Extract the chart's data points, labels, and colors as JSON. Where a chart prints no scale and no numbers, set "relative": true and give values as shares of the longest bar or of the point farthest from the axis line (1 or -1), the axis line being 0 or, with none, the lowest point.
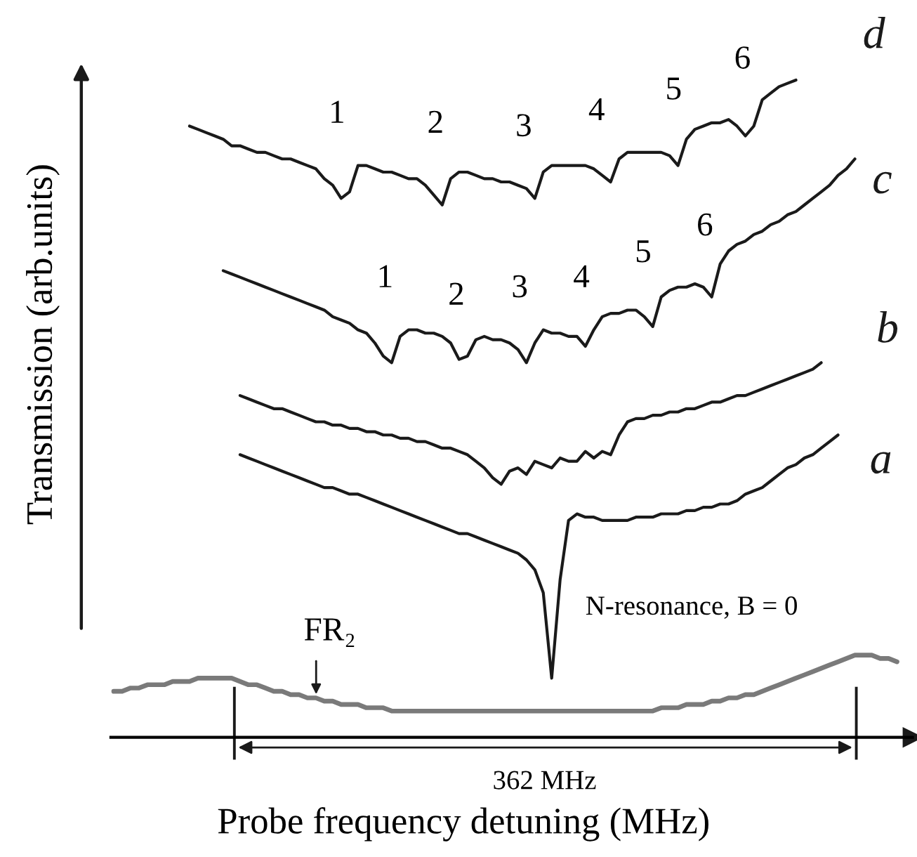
{
  "chart_data": {
    "type": "line",
    "relative": true,
    "xlabel": "Probe frequency detuning (MHz)",
    "ylabel": "Transmission (arb.units)",
    "line_style": "solid",
    "categories": [
      null,
      null,
      null,
      null,
      null,
      null,
      null,
      null,
      null,
      null,
      null,
      null,
      null,
      null,
      null,
      null,
      null,
      null,
      null,
      null,
      null,
      null,
      null,
      null,
      null,
      null,
      null,
      null,
      null,
      null,
      null,
      null,
      null,
      null,
      null,
      null,
      null,
      null,
      null,
      null,
      null,
      null,
      null,
      null,
      null,
      null,
      null,
      null,
      null,
      null,
      null,
      null,
      null,
      null,
      null,
      null,
      null,
      null,
      null,
      null,
      null,
      null,
      null,
      null,
      null,
      null,
      null,
      null,
      null,
      null,
      null,
      null,
      null,
      null,
      null,
      null,
      null,
      null,
      null,
      null,
      null,
      null,
      null,
      null,
      null,
      null,
      null,
      null,
      null,
      null,
      null,
      null,
      null,
      null
    ],
    "series": [
      {
        "name": "d",
        "color": "#1a1a1a",
        "values": [
          null,
          null,
          null,
          null,
          null,
          null,
          null,
          null,
          null,
          0.93,
          0.925,
          0.92,
          0.915,
          0.91,
          0.9,
          0.9,
          0.895,
          0.89,
          0.89,
          0.885,
          0.88,
          0.88,
          0.875,
          0.87,
          0.865,
          0.85,
          0.84,
          0.82,
          0.83,
          0.87,
          0.87,
          0.865,
          0.86,
          0.86,
          0.855,
          0.85,
          0.85,
          0.84,
          0.825,
          0.81,
          0.85,
          0.86,
          0.86,
          0.855,
          0.85,
          0.85,
          0.845,
          0.845,
          0.84,
          0.835,
          0.82,
          0.86,
          0.87,
          0.87,
          0.87,
          0.87,
          0.87,
          0.865,
          0.855,
          0.845,
          0.88,
          0.89,
          0.89,
          0.89,
          0.89,
          0.89,
          0.885,
          0.87,
          0.91,
          0.925,
          0.93,
          0.935,
          0.935,
          0.94,
          0.93,
          0.915,
          0.93,
          0.97,
          0.98,
          0.99,
          0.995,
          1.0,
          null,
          null,
          null,
          null,
          null,
          null,
          null,
          null,
          null,
          null,
          null,
          null
        ]
      },
      {
        "name": "c",
        "color": "#1a1a1a",
        "values": [
          null,
          null,
          null,
          null,
          null,
          null,
          null,
          null,
          null,
          null,
          null,
          null,
          null,
          0.71,
          0.705,
          0.7,
          0.695,
          0.69,
          0.685,
          0.68,
          0.675,
          0.67,
          0.665,
          0.66,
          0.655,
          0.65,
          0.64,
          0.635,
          0.63,
          0.62,
          0.615,
          0.6,
          0.58,
          0.57,
          0.61,
          0.62,
          0.62,
          0.615,
          0.615,
          0.61,
          0.6,
          0.575,
          0.58,
          0.605,
          0.61,
          0.605,
          0.605,
          0.6,
          0.59,
          0.57,
          0.6,
          0.62,
          0.615,
          0.615,
          0.61,
          0.61,
          0.595,
          0.62,
          0.64,
          0.645,
          0.645,
          0.65,
          0.65,
          0.64,
          0.625,
          0.67,
          0.68,
          0.685,
          0.685,
          0.69,
          0.685,
          0.67,
          0.72,
          0.74,
          0.75,
          0.755,
          0.765,
          0.77,
          0.78,
          0.785,
          0.795,
          0.8,
          0.81,
          0.82,
          0.83,
          0.84,
          0.855,
          0.865,
          0.88,
          null,
          null,
          null,
          null,
          null
        ]
      },
      {
        "name": "b",
        "color": "#1a1a1a",
        "values": [
          null,
          null,
          null,
          null,
          null,
          null,
          null,
          null,
          null,
          null,
          null,
          null,
          null,
          null,
          null,
          0.52,
          0.515,
          0.51,
          0.505,
          0.5,
          0.5,
          0.495,
          0.49,
          0.485,
          0.48,
          0.48,
          0.475,
          0.475,
          0.47,
          0.47,
          0.465,
          0.465,
          0.46,
          0.46,
          0.455,
          0.455,
          0.45,
          0.45,
          0.445,
          0.44,
          0.44,
          0.435,
          0.43,
          0.42,
          0.41,
          0.395,
          0.385,
          0.405,
          0.41,
          0.4,
          0.42,
          0.415,
          0.41,
          0.425,
          0.42,
          0.42,
          0.435,
          0.425,
          0.435,
          0.43,
          0.46,
          0.48,
          0.485,
          0.485,
          0.49,
          0.49,
          0.495,
          0.495,
          0.5,
          0.5,
          0.505,
          0.51,
          0.51,
          0.515,
          0.52,
          0.52,
          0.525,
          0.53,
          0.535,
          0.54,
          0.545,
          0.55,
          0.555,
          0.56,
          0.57,
          null,
          null,
          null,
          null,
          null,
          null,
          null,
          null,
          null
        ]
      },
      {
        "name": "a",
        "color": "#1a1a1a",
        "values": [
          null,
          null,
          null,
          null,
          null,
          null,
          null,
          null,
          null,
          null,
          null,
          null,
          null,
          null,
          null,
          0.43,
          0.425,
          0.42,
          0.415,
          0.41,
          0.405,
          0.4,
          0.395,
          0.39,
          0.385,
          0.38,
          0.38,
          0.375,
          0.37,
          0.37,
          0.365,
          0.36,
          0.355,
          0.35,
          0.345,
          0.34,
          0.335,
          0.33,
          0.325,
          0.32,
          0.315,
          0.31,
          0.31,
          0.305,
          0.3,
          0.295,
          0.29,
          0.285,
          0.28,
          0.27,
          0.255,
          0.22,
          0.09,
          0.24,
          0.33,
          0.34,
          0.335,
          0.335,
          0.33,
          0.33,
          0.33,
          0.33,
          0.335,
          0.335,
          0.335,
          0.34,
          0.34,
          0.34,
          0.345,
          0.345,
          0.35,
          0.35,
          0.355,
          0.355,
          0.36,
          0.37,
          0.375,
          0.38,
          0.39,
          0.4,
          0.41,
          0.415,
          0.425,
          0.43,
          0.44,
          0.45,
          0.46,
          null,
          null,
          null,
          null,
          null,
          null,
          null
        ]
      },
      {
        "color": "#7a7a7a",
        "values": [
          0.07,
          0.07,
          0.075,
          0.075,
          0.08,
          0.08,
          0.08,
          0.085,
          0.085,
          0.085,
          0.09,
          0.09,
          0.09,
          0.09,
          0.09,
          0.085,
          0.08,
          0.08,
          0.075,
          0.07,
          0.07,
          0.065,
          0.065,
          0.06,
          0.06,
          0.055,
          0.055,
          0.05,
          0.05,
          0.05,
          0.045,
          0.045,
          0.045,
          0.04,
          0.04,
          0.04,
          0.04,
          0.04,
          0.04,
          0.04,
          0.04,
          0.04,
          0.04,
          0.04,
          0.04,
          0.04,
          0.04,
          0.04,
          0.04,
          0.04,
          0.04,
          0.04,
          0.04,
          0.04,
          0.04,
          0.04,
          0.04,
          0.04,
          0.04,
          0.04,
          0.04,
          0.04,
          0.04,
          0.04,
          0.04,
          0.045,
          0.045,
          0.045,
          0.05,
          0.05,
          0.05,
          0.055,
          0.055,
          0.06,
          0.06,
          0.065,
          0.065,
          0.07,
          0.075,
          0.08,
          0.085,
          0.09,
          0.095,
          0.1,
          0.105,
          0.11,
          0.115,
          0.12,
          0.125,
          0.125,
          0.125,
          0.12,
          0.12,
          0.115
        ]
      }
    ],
    "annotations": [
      "1",
      "2",
      "3",
      "4",
      "5",
      "6",
      "1",
      "2",
      "3",
      "4",
      "5",
      "6",
      "FR₂",
      "N-resonance, B = 0",
      "362 MHz"
    ]
  }
}
